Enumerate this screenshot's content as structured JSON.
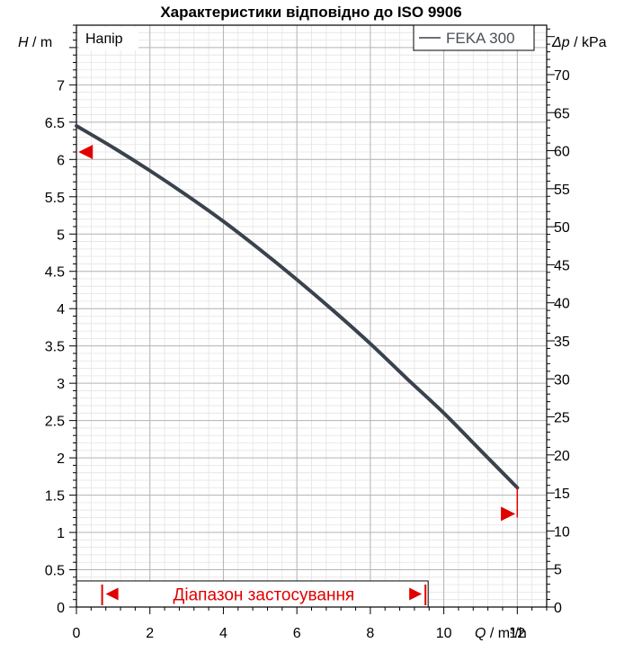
{
  "chart_data": {
    "type": "line",
    "title": "Характеристики відповідно до ISO 9906",
    "panel_label": "Напір",
    "ylabel_left": {
      "symbol": "H",
      "unit": " / m"
    },
    "ylabel_right": {
      "symbol": "Δp",
      "unit": " / kPa"
    },
    "xlabel": {
      "symbol": "Q",
      "unit": " / m³/h"
    },
    "xlim": [
      0,
      12.8
    ],
    "ylim": [
      0,
      7.8
    ],
    "ylim_right": [
      0,
      76.5
    ],
    "x_ticks": [
      0,
      2,
      4,
      6,
      8,
      10,
      12
    ],
    "y_ticks": [
      0,
      0.5,
      1,
      1.5,
      2,
      2.5,
      3,
      3.5,
      4,
      4.5,
      5,
      5.5,
      6,
      6.5,
      7
    ],
    "y_ticks_right": [
      0,
      5,
      10,
      15,
      20,
      25,
      30,
      35,
      40,
      45,
      50,
      55,
      60,
      65,
      70
    ],
    "grid": true,
    "legend": {
      "position": "top-right",
      "entries": [
        "FEKA 300"
      ]
    },
    "series": [
      {
        "name": "FEKA 300",
        "color": "#3a424e",
        "x": [
          0,
          1,
          2,
          3,
          4,
          5,
          6,
          7,
          8,
          9,
          10,
          11,
          12
        ],
        "y": [
          6.45,
          6.16,
          5.85,
          5.52,
          5.17,
          4.79,
          4.39,
          3.97,
          3.53,
          3.06,
          2.6,
          2.1,
          1.6
        ]
      }
    ],
    "markers": [
      {
        "name": "head-marker",
        "x": 0.25,
        "y": 6.1,
        "direction": "left",
        "color": "#e00000"
      },
      {
        "name": "end-marker",
        "x": 11.75,
        "y": 1.25,
        "direction": "right",
        "color": "#e00000"
      }
    ],
    "end_line": {
      "x": 12,
      "y_from": 1.2,
      "y_to": 1.6,
      "color": "#e00000"
    },
    "operating_range": {
      "label": "Діапазон застосування",
      "x_from": 0.7,
      "x_to": 9.5,
      "color": "#e00000"
    }
  }
}
